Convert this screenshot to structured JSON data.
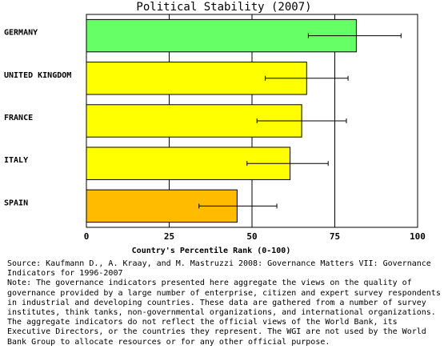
{
  "chart_data": {
    "type": "bar",
    "orientation": "horizontal",
    "title": "Political Stability (2007)",
    "xlabel": "Country's Percentile Rank (0-100)",
    "xlim": [
      0,
      100
    ],
    "xticks": [
      0,
      25,
      50,
      75,
      100
    ],
    "grid": "vertical",
    "categories": [
      "GERMANY",
      "UNITED KINGDOM",
      "FRANCE",
      "ITALY",
      "SPAIN"
    ],
    "values": [
      81.5,
      66.5,
      65,
      61.5,
      45.5
    ],
    "error_low": [
      67,
      54,
      51.5,
      48.5,
      34
    ],
    "error_high": [
      95,
      79,
      78.5,
      73,
      57.5
    ],
    "bar_colors": [
      "#66ff66",
      "#ffff00",
      "#ffff00",
      "#ffff00",
      "#ffbb00"
    ]
  },
  "notes": {
    "source": "Source: Kaufmann D., A. Kraay, and M. Mastruzzi 2008: Governance Matters VII: Governance Indicators for 1996-2007",
    "note": "Note: The governance indicators presented here aggregate the views on the quality of governance provided by a large number of enterprise, citizen and expert survey respondents in industrial and developing countries. These data are gathered from a number of survey institutes, think tanks, non-governmental organizations, and international organizations. The aggregate indicators do not reflect the official views of the World Bank, its Executive Directors, or the countries they represent. The WGI are not used by the World Bank Group to allocate resources or for any other official purpose."
  }
}
